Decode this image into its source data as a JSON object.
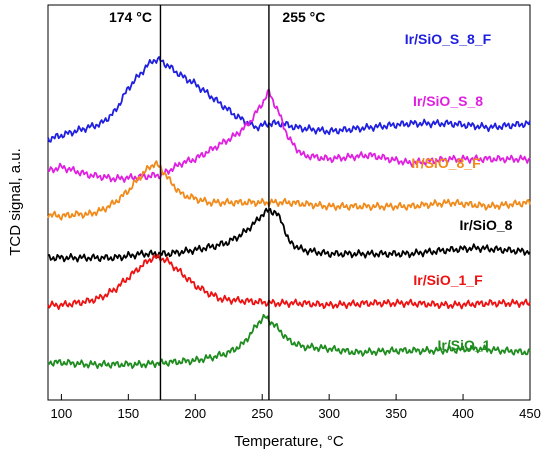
{
  "chart_data": {
    "type": "line",
    "xlabel": "Temperature, °C",
    "ylabel": "TCD signal, a.u.",
    "xlim": [
      90,
      450
    ],
    "xticks": [
      100,
      150,
      200,
      250,
      300,
      350,
      400,
      450
    ],
    "grid": false,
    "annotations": [
      {
        "x": 174,
        "text": "174 °C"
      },
      {
        "x": 255,
        "text": "255 °C"
      }
    ],
    "series": [
      {
        "name": "Ir/SiO_S_8_F",
        "color": "#1f1fe0",
        "x": [
          90,
          100,
          110,
          120,
          130,
          140,
          150,
          160,
          168,
          174,
          182,
          190,
          200,
          215,
          230,
          245,
          255,
          265,
          275,
          300,
          330,
          360,
          390,
          420,
          450
        ],
        "y": [
          0.66,
          0.67,
          0.68,
          0.69,
          0.7,
          0.73,
          0.79,
          0.83,
          0.86,
          0.86,
          0.84,
          0.82,
          0.8,
          0.76,
          0.72,
          0.69,
          0.7,
          0.7,
          0.69,
          0.68,
          0.69,
          0.7,
          0.7,
          0.69,
          0.7
        ]
      },
      {
        "name": "Ir/SiO_S_8",
        "color": "#e020e0",
        "x": [
          90,
          100,
          120,
          140,
          160,
          175,
          190,
          200,
          210,
          220,
          230,
          240,
          248,
          255,
          262,
          270,
          280,
          300,
          330,
          360,
          390,
          420,
          450
        ],
        "y": [
          0.58,
          0.59,
          0.57,
          0.56,
          0.565,
          0.57,
          0.6,
          0.61,
          0.63,
          0.65,
          0.67,
          0.7,
          0.74,
          0.78,
          0.73,
          0.66,
          0.62,
          0.61,
          0.62,
          0.6,
          0.61,
          0.61,
          0.61
        ]
      },
      {
        "name": "Ir/SiO_8_F",
        "color": "#f08a1a",
        "x": [
          90,
          100,
          110,
          120,
          130,
          140,
          150,
          160,
          166,
          170,
          176,
          182,
          190,
          200,
          210,
          230,
          250,
          270,
          300,
          330,
          360,
          390,
          420,
          450
        ],
        "y": [
          0.47,
          0.465,
          0.47,
          0.47,
          0.48,
          0.5,
          0.53,
          0.57,
          0.59,
          0.6,
          0.58,
          0.55,
          0.52,
          0.51,
          0.5,
          0.5,
          0.5,
          0.5,
          0.49,
          0.49,
          0.49,
          0.5,
          0.49,
          0.5
        ]
      },
      {
        "name": "Ir/SiO_8",
        "color": "#000000",
        "x": [
          90,
          100,
          120,
          140,
          160,
          180,
          200,
          215,
          225,
          235,
          245,
          250,
          255,
          260,
          265,
          270,
          280,
          300,
          330,
          360,
          390,
          410,
          430,
          450
        ],
        "y": [
          0.36,
          0.36,
          0.36,
          0.36,
          0.37,
          0.37,
          0.38,
          0.39,
          0.4,
          0.42,
          0.45,
          0.47,
          0.48,
          0.475,
          0.45,
          0.4,
          0.38,
          0.37,
          0.37,
          0.37,
          0.38,
          0.385,
          0.38,
          0.375
        ]
      },
      {
        "name": "Ir/SiO_1_F",
        "color": "#ee1111",
        "x": [
          90,
          100,
          110,
          120,
          130,
          140,
          150,
          160,
          168,
          174,
          180,
          190,
          200,
          210,
          220,
          240,
          260,
          280,
          300,
          330,
          360,
          390,
          420,
          450
        ],
        "y": [
          0.24,
          0.24,
          0.245,
          0.25,
          0.26,
          0.28,
          0.31,
          0.34,
          0.36,
          0.36,
          0.35,
          0.32,
          0.29,
          0.27,
          0.255,
          0.25,
          0.245,
          0.245,
          0.24,
          0.245,
          0.245,
          0.24,
          0.245,
          0.245
        ]
      },
      {
        "name": "Ir/SiO_1",
        "color": "#1e8c1e",
        "x": [
          90,
          100,
          120,
          140,
          160,
          180,
          200,
          215,
          225,
          235,
          242,
          248,
          252,
          256,
          262,
          270,
          280,
          300,
          320,
          350,
          380,
          410,
          430,
          450
        ],
        "y": [
          0.095,
          0.095,
          0.09,
          0.09,
          0.09,
          0.095,
          0.1,
          0.11,
          0.12,
          0.14,
          0.17,
          0.2,
          0.21,
          0.2,
          0.18,
          0.15,
          0.135,
          0.13,
          0.12,
          0.125,
          0.125,
          0.13,
          0.125,
          0.12
        ]
      }
    ]
  }
}
